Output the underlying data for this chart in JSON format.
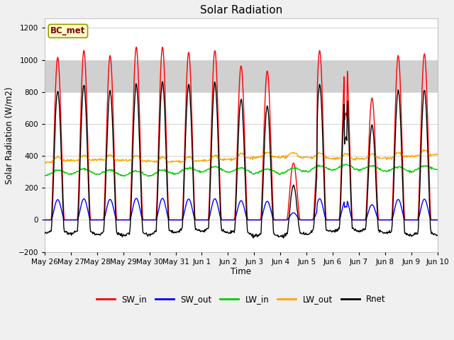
{
  "title": "Solar Radiation",
  "ylabel": "Solar Radiation (W/m2)",
  "xlabel": "Time",
  "ylim": [
    -200,
    1260
  ],
  "yticks": [
    -200,
    0,
    200,
    400,
    600,
    800,
    1000,
    1200
  ],
  "annotation": "BC_met",
  "legend_entries": [
    "SW_in",
    "SW_out",
    "LW_in",
    "LW_out",
    "Rnet"
  ],
  "line_colors": [
    "#ff0000",
    "#0000ff",
    "#00cc00",
    "#ffa500",
    "#000000"
  ],
  "x_tick_labels": [
    "May 26",
    "May 27",
    "May 28",
    "May 29",
    "May 30",
    "May 31",
    "Jun 1",
    "Jun 2",
    "Jun 3",
    "Jun 4",
    "Jun 5",
    "Jun 6",
    "Jun 7",
    "Jun 8",
    "Jun 9",
    "Jun 10"
  ],
  "n_days": 15,
  "plot_bg_color": "#ffffff",
  "fig_bg_color": "#f0f0f0",
  "grid_color": "#d8d8d8",
  "gray_band_lo": 800,
  "gray_band_hi": 1000,
  "gray_band_color": "#d0d0d0",
  "figsize": [
    6.4,
    4.8
  ],
  "dpi": 100,
  "lw": 1.0
}
